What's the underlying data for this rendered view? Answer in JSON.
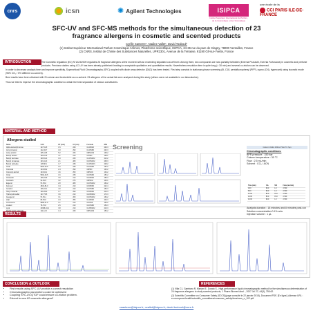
{
  "logos": {
    "cnrs": "cnrs",
    "icsn": "icsn",
    "agilent": "Agilent Technologies",
    "isipca": "ISIPCA",
    "isipca_sub": "Institut Supérieur International du Parfum, de la Cosmétique et de l'Aromatique",
    "cci_top": "une école de la",
    "cci_main": "CCI PARIS ILE-DE-FRANCE"
  },
  "title": {
    "line1": "SFC-UV and SFC-MS methods for the simultaneous detection of 23",
    "line2": "fragrance allergens in cosmetic and scented products"
  },
  "authors": {
    "names": "Cyrille Santerre¹, Nadine Vallet¹, David Touboul²",
    "aff1": "(1) Institut Supérieur International Parfum Cosmétique Arômes, Plateforme scientifique, ISIPCA, 34-36 rue du parc de Clagny, 78000 Versailles, France",
    "aff2": "(2) CNRS, Institut de Chimie des Substances Naturelles, UPR2301, Avenue de la Terrasse, 91190 Gif-sur-Yvette, France"
  },
  "sections": {
    "introduction": "INTRODUCTION",
    "material": "MATERIAL AND METHOD",
    "results": "RESULTS",
    "conclusion": "CONCLUSION & OUTLOOK",
    "references": "REFERENCES"
  },
  "intro": {
    "p1": "The Cosmetic regulation (EC) N°1223/2009 regulates 26 fragrance allergens at the moment with an exceeding stipulated cut-off level. Among them, two compounds are now partially forbidden (Evernia Prunastri, Evernia Furfuracea) in cosmetic and perfume products. Previous studies using LC-UV has been already published¹ leading to acceptable qualitative and quantitative results. Nevertheless resolution time is quite long (> 30 min) and several co-elution can be observed.",
    "p2": "In order to decrease analysis time and improve specificity, Supercritical Fluid Chromatography (SFC) coupled with diode array detector (DAD) has been tested. First step consists in stationary phase screening (5L C18, pentafluorophenyl (PFP), cyano (CN), hypercarb) using isocratic mode (95% CO₂ / 5% different co-solvent).",
    "p3": "Best results have been obtained with SI column and Acetonitrile as co-solvent. 23 allergens of the actual list were analyzed during this study (others were not available in our laboratories).",
    "p4": "Thus we tried to improve the chromatographic condition to obtain the best separation of various constituents."
  },
  "mm": {
    "table_title": "Allergens studied",
    "screening": "Screening",
    "columns": [
      "Name",
      "CAS",
      "RT (min)",
      "UV (nm)",
      "Formula",
      "MW"
    ],
    "rows": [
      [
        "Alpha-isomethyl ionone",
        "127-51-5",
        "1.5",
        "228",
        "C14H22O",
        "206.3"
      ],
      [
        "Amyl cinnamal",
        "122-40-7",
        "1.8",
        "290",
        "C14H18O",
        "202.3"
      ],
      [
        "Anise alcohol",
        "105-13-5",
        "5.2",
        "225",
        "C8H10O2",
        "138.2"
      ],
      [
        "Benzyl alcohol",
        "100-51-6",
        "4.1",
        "210",
        "C7H8O",
        "108.1"
      ],
      [
        "Benzyl benzoate",
        "120-51-4",
        "1.9",
        "230",
        "C14H12O2",
        "212.2"
      ],
      [
        "Benzyl cinnamate",
        "103-41-3",
        "2.1",
        "280",
        "C16H14O2",
        "238.3"
      ],
      [
        "Benzyl salicylate",
        "118-58-1",
        "1.7",
        "238",
        "C14H12O3",
        "228.2"
      ],
      [
        "Citral",
        "5392-40-5",
        "1.6",
        "238",
        "C10H16O",
        "152.2"
      ],
      [
        "Cinnamal",
        "104-55-2",
        "2.4",
        "290",
        "C9H8O",
        "132.2"
      ],
      [
        "Cinnamyl alcohol",
        "104-54-1",
        "4.6",
        "250",
        "C9H10O",
        "134.2"
      ],
      [
        "Citral",
        "5392-40-5",
        "1.6",
        "238",
        "C10H16O",
        "152.2"
      ],
      [
        "Citronellol",
        "106-22-9",
        "3.9",
        "210",
        "C10H20O",
        "156.3"
      ],
      [
        "Coumarin",
        "91-64-5",
        "3.2",
        "275",
        "C9H6O2",
        "146.1"
      ],
      [
        "Eugenol",
        "97-53-0",
        "2.8",
        "280",
        "C10H12O2",
        "164.2"
      ],
      [
        "Farnesol",
        "4602-84-0",
        "3.4",
        "210",
        "C15H26O",
        "222.4"
      ],
      [
        "Geraniol",
        "106-24-1",
        "4.0",
        "210",
        "C10H18O",
        "154.3"
      ],
      [
        "Hexyl cinnamal",
        "101-86-0",
        "1.7",
        "290",
        "C15H20O",
        "216.3"
      ],
      [
        "Hydroxycitronellal",
        "107-75-5",
        "3.6",
        "210",
        "C10H20O2",
        "172.3"
      ],
      [
        "Isoeugenol",
        "97-54-1",
        "3.1",
        "260",
        "C10H12O2",
        "164.2"
      ],
      [
        "Lilial",
        "80-54-6",
        "1.9",
        "255",
        "C14H20O",
        "204.3"
      ],
      [
        "d-Limonene",
        "5989-27-5",
        "1.1",
        "210",
        "C10H16",
        "136.2"
      ],
      [
        "Linalool",
        "78-70-6",
        "2.5",
        "210",
        "C10H18O",
        "154.3"
      ],
      [
        "Lyral",
        "31906-04-4",
        "3.8",
        "210",
        "C13H22O2",
        "210.3"
      ],
      [
        "Methyl heptin carbonate",
        "111-12-6",
        "1.4",
        "230",
        "C9H14O2",
        "154.2"
      ]
    ]
  },
  "conditions": {
    "box_title": "Column Viridis 150mm*3mm*1.7µm",
    "heading": "Chromatographic conditions:",
    "lines": [
      "BPR pressure : 150 bar",
      "Column temperature : 30 °C",
      "Flow : 2.5 mL/min",
      "Solvent : CO₂ / ACN"
    ],
    "grad_head": [
      "Time (min)",
      "%A",
      "%B",
      "Flow (mL/min)"
    ],
    "grad_rows": [
      [
        "0.00",
        "99.0",
        "1.0",
        "2.500"
      ],
      [
        "8.00",
        "99.0",
        "1.0",
        "2.500"
      ],
      [
        "12.00",
        "85.0",
        "15.0",
        "2.500"
      ],
      [
        "14.00",
        "85.0",
        "15.0",
        "2.500"
      ],
      [
        "16.00",
        "99.0",
        "1.0",
        "2.500"
      ]
    ],
    "analysis": [
      "Analysis duration : 18 minutes and 8 minutes post-run",
      "Solution concentration 0.1% w/w",
      "Injection volume : 1 µL"
    ],
    "uv_button": "Uv detect",
    "uv_heading": "UV conditions :",
    "uv_lines": [
      "Wavelength : 210 nm. Width : 4 nm",
      "Wavelength : 254 nm. Width : 4 nm",
      "Wavelength : 280 nm. Width : 4 nm",
      "Reference : 360 nm . Width : 50 nm"
    ]
  },
  "conclusion": {
    "items": [
      "First results using SFC-UV provide a correct resolution",
      "Chromatographic parameters could be optimized",
      "Coupling SFC-UV-QTOF could ensure co-elution problem.",
      "Extend to new 82 cosmetic allergens³"
    ]
  },
  "references": {
    "items": [
      "(1) Villa C1, Gambaro R, Mariani E, Dorato S., High-performance liquid chromatographic method for the simultaneous determination of 24 fragrance allergens to study scented products, J Pharm Biomed Anal. , 2007 Jul 27; 44(3), 755-62.",
      "(2) Scientific Committee on Consumer Safety (SCCS)(page consulté le 22 janvier 2015), Document PDF, [En ligne]. Adresse URL : ec.europa.eu/health/scientific_committees/consumer_safety/docs/sccs_o_102.pdf"
    ]
  },
  "footer": {
    "emails": "csanterre@isipca.fr; nvallet@isipca.fr; david.touboul@cnrs.fr"
  },
  "colors": {
    "section_red": "#a3142b",
    "isipca_pink": "#d4267b",
    "cnrs_blue": "#1c55a8",
    "trace_blue": "#4a62c8"
  }
}
